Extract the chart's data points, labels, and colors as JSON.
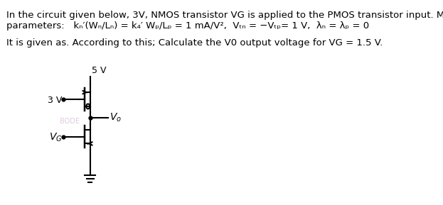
{
  "line1": "In the circuit given below, 3V, NMOS transistor VG is applied to the PMOS transistor input. Mosfet",
  "line2": "parameters:   kₙ′(Wₙ/Lₙ) = k₄′ Wₚ/Lₚ = 1 mA/V²,  Vₜₙ = −Vₜₚ= 1 V,  λₙ = λₚ = 0",
  "line3": "It is given as. According to this; Calculate the V0 output voltage for VG = 1.5 V.",
  "bg_color": "#ffffff",
  "text_color": "#000000",
  "circuit_color": "#000000",
  "faded_color": "#c8a8c8",
  "label_5V": "5 V",
  "label_3V": "3 V",
  "label_VG": "VG",
  "label_Vo": "Vo",
  "fs_main": 9.5,
  "fs_circuit": 9.0,
  "lw": 1.5
}
